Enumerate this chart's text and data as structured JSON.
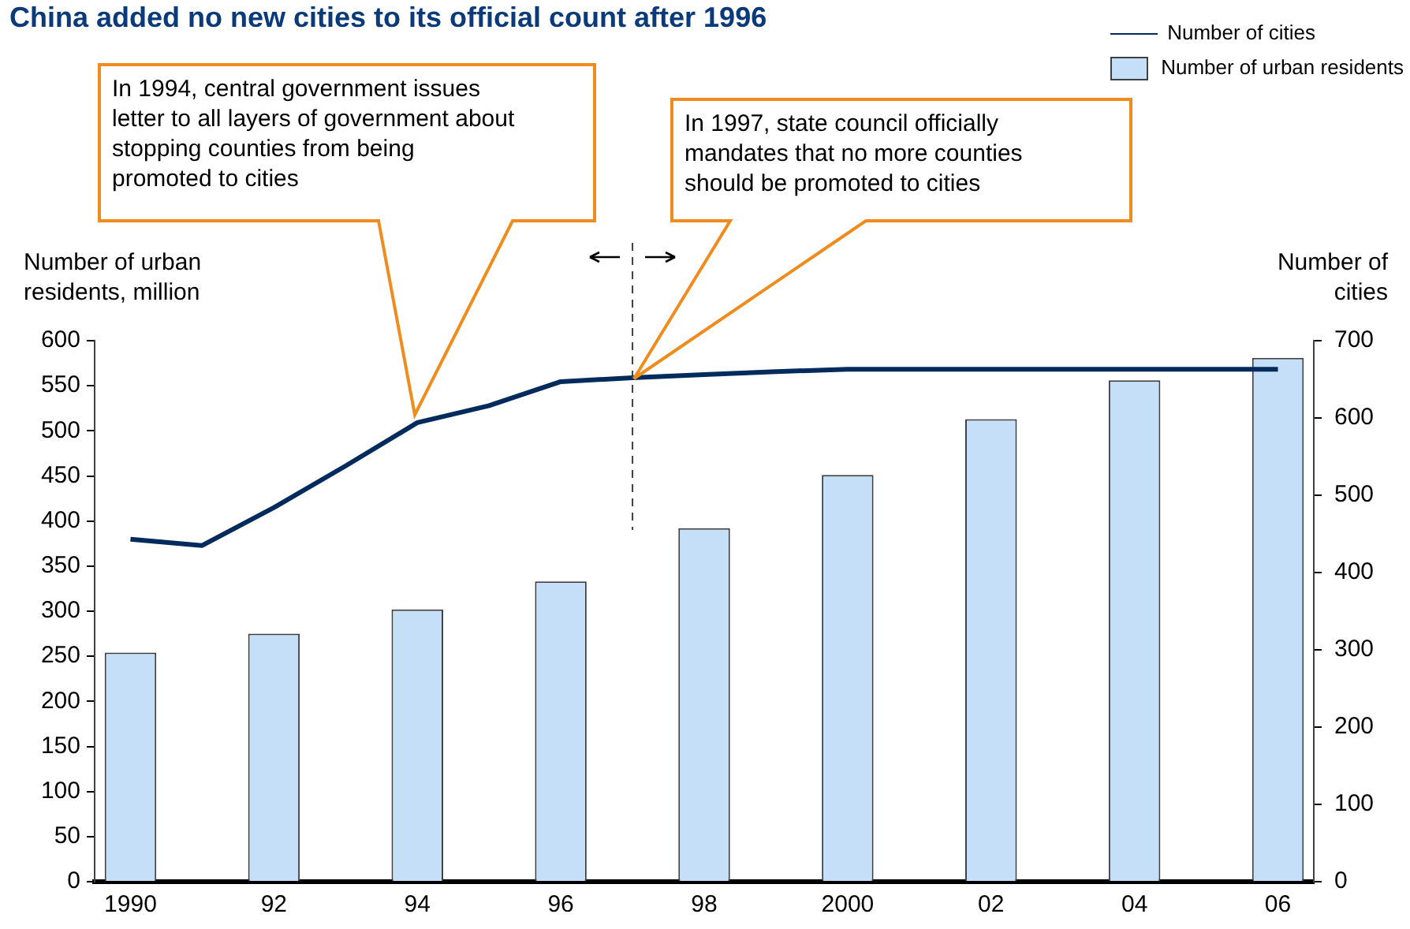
{
  "chart_data": {
    "type": "bar",
    "title": "China added no new cities to its official count after 1996",
    "ylabel": "Number of urban residents, million",
    "y2label": "Number of cities",
    "series": [
      {
        "name": "Number of urban residents",
        "color": "#c6dff8",
        "x": [
          1990,
          1992,
          1994,
          1996,
          1998,
          2000,
          2002,
          2004,
          2006
        ],
        "values": [
          254,
          275,
          302,
          333,
          392,
          451,
          513,
          556,
          581
        ]
      },
      {
        "name": "Number of cities",
        "type": "line",
        "axis": "y2",
        "color": "#002b5c",
        "x": [
          1990,
          1991,
          1992,
          1993,
          1994,
          1995,
          1996,
          1997,
          1998,
          1999,
          2000,
          2001,
          2002,
          2003,
          2004,
          2005,
          2006
        ],
        "values": [
          443,
          435,
          484,
          538,
          594,
          616,
          647,
          652,
          656,
          660,
          663,
          663,
          663,
          663,
          663,
          663,
          663
        ]
      }
    ],
    "xlim": [
      1989.5,
      2006.5
    ],
    "xticks": [
      {
        "value": 1990,
        "label": "1990"
      },
      {
        "value": 1992,
        "label": "92"
      },
      {
        "value": 1994,
        "label": "94"
      },
      {
        "value": 1996,
        "label": "96"
      },
      {
        "value": 1998,
        "label": "98"
      },
      {
        "value": 2000,
        "label": "2000"
      },
      {
        "value": 2002,
        "label": "02"
      },
      {
        "value": 2004,
        "label": "04"
      },
      {
        "value": 2006,
        "label": "06"
      }
    ],
    "ylim": [
      0,
      600
    ],
    "yticks": [
      0,
      50,
      100,
      150,
      200,
      250,
      300,
      350,
      400,
      450,
      500,
      550,
      600
    ],
    "y2lim": [
      0,
      700
    ],
    "y2ticks": [
      0,
      100,
      200,
      300,
      400,
      500,
      600,
      700
    ],
    "ref_lines": [
      {
        "axis": "x",
        "value": 1997,
        "line_style": "dashed",
        "color": "#404040"
      }
    ],
    "annotations": [
      "In 1994, central government issues letter to all layers of government about stopping counties from being promoted to cities",
      "In 1997, state council officially mandates that no more counties should be promoted to cities"
    ],
    "legend": "top right",
    "grid": false,
    "marker": "none"
  }
}
